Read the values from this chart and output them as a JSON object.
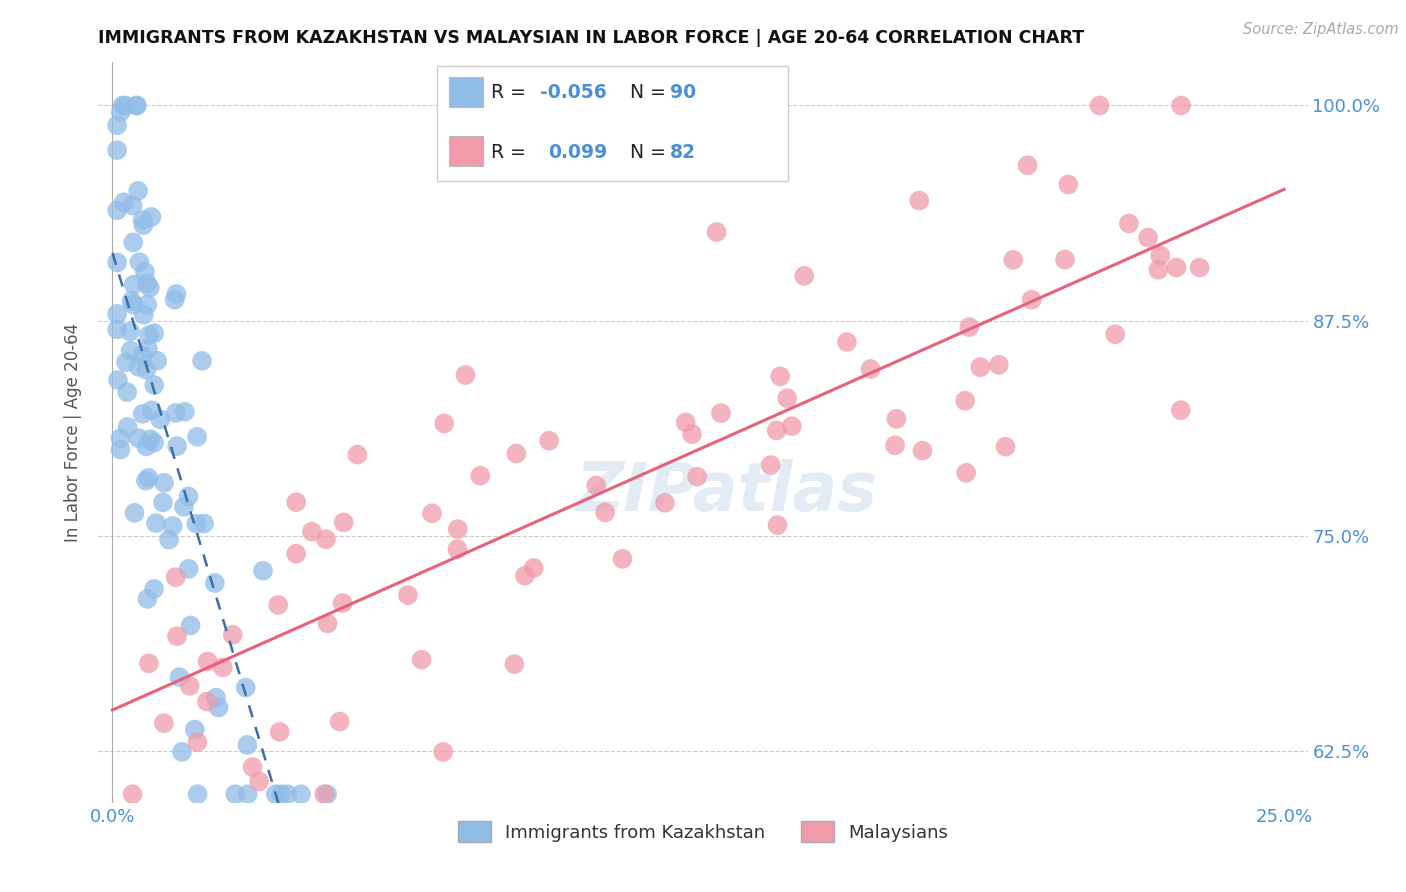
{
  "title": "IMMIGRANTS FROM KAZAKHSTAN VS MALAYSIAN IN LABOR FORCE | AGE 20-64 CORRELATION CHART",
  "source": "Source: ZipAtlas.com",
  "ylabel": "In Labor Force | Age 20-64",
  "xlim": [
    -0.003,
    0.255
  ],
  "ylim": [
    0.595,
    1.025
  ],
  "xticks": [
    0.0,
    0.05,
    0.1,
    0.15,
    0.2,
    0.25
  ],
  "yticks": [
    0.625,
    0.75,
    0.875,
    1.0
  ],
  "R1": -0.056,
  "N1": 90,
  "R2": 0.099,
  "N2": 82,
  "watermark": "ZIPatlas",
  "color_kaz": "#90bce8",
  "color_malay": "#f09aaa",
  "color_kaz_line": "#3a6fa8",
  "color_malay_line": "#e8607a",
  "background": "#ffffff"
}
